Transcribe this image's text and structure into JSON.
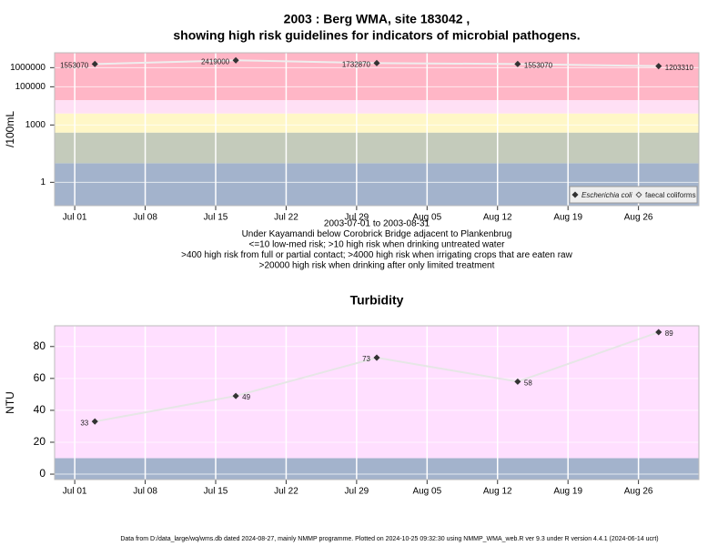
{
  "footer": "Data from D:/data_large/wq/wms.db dated 2024-08-27, mainly NMMP programme. Plotted on 2024-10-25 09:32:30 using NMMP_WMA_web.R ver 9.3 under R version 4.4.1 (2024-06-14 ucrt)",
  "chart_data": [
    {
      "type": "scatter",
      "title": [
        "2003 : Berg WMA, site 183042 ,",
        "showing high risk guidelines for indicators of microbial pathogens."
      ],
      "notes": [
        "2003-07-01 to 2003-08-31",
        "Under Kayamandi below Corobrick Bridge adjacent to Plankenbrug",
        "<=10 low-med risk; >10 high risk when drinking untreated water",
        ">400 high risk from full or partial contact; >4000 high risk when irrigating crops that are eaten raw",
        ">20000 high risk when drinking after only limited treatment"
      ],
      "y_label": "/100mL",
      "log_y": true,
      "x": [
        "2003-07-03",
        "2003-07-17",
        "2003-07-31",
        "2003-08-14",
        "2003-08-28"
      ],
      "series": [
        {
          "name": "Escherichia coli",
          "color": "#333333",
          "values": [
            1553070,
            2419000,
            1732870,
            1553070,
            1203310
          ]
        },
        {
          "name": "faecal coliforms",
          "color": "#555555",
          "values": [
            null,
            null,
            null,
            null,
            null
          ]
        }
      ],
      "line_color": "#eeeeee",
      "xlim": [
        "2003-06-29",
        "2003-09-01"
      ],
      "xticks": [
        {
          "value": "2003-07-01",
          "label": "Jul 01"
        },
        {
          "value": "2003-07-08",
          "label": "Jul 08"
        },
        {
          "value": "2003-07-15",
          "label": "Jul 15"
        },
        {
          "value": "2003-07-22",
          "label": "Jul 22"
        },
        {
          "value": "2003-07-29",
          "label": "Jul 29"
        },
        {
          "value": "2003-08-05",
          "label": "Aug 05"
        },
        {
          "value": "2003-08-12",
          "label": "Aug 12"
        },
        {
          "value": "2003-08-19",
          "label": "Aug 19"
        },
        {
          "value": "2003-08-26",
          "label": "Aug 26"
        }
      ],
      "ylim": [
        0.06,
        6000000
      ],
      "yticks": [
        1,
        1000,
        100000,
        1000000
      ],
      "band_breaks": [
        10,
        400,
        4000,
        20000
      ],
      "band_colors": [
        "#a3b3cc",
        "#c4cbbb",
        "#fff7c7",
        "#ffe0f5",
        "#ffb6c6"
      ],
      "grid": true,
      "legend_position": "bottom right"
    },
    {
      "type": "line",
      "title": "Turbidity",
      "y_label": "NTU",
      "x": [
        "2003-07-03",
        "2003-07-17",
        "2003-07-31",
        "2003-08-14",
        "2003-08-28"
      ],
      "values": [
        33,
        49,
        73,
        58,
        89
      ],
      "color": "#333333",
      "line_color": "#e6e6e6",
      "xlim": [
        "2003-06-29",
        "2003-09-01"
      ],
      "xticks": [
        {
          "value": "2003-07-01",
          "label": "Jul 01"
        },
        {
          "value": "2003-07-08",
          "label": "Jul 08"
        },
        {
          "value": "2003-07-15",
          "label": "Jul 15"
        },
        {
          "value": "2003-07-22",
          "label": "Jul 22"
        },
        {
          "value": "2003-07-29",
          "label": "Jul 29"
        },
        {
          "value": "2003-08-05",
          "label": "Aug 05"
        },
        {
          "value": "2003-08-12",
          "label": "Aug 12"
        },
        {
          "value": "2003-08-19",
          "label": "Aug 19"
        },
        {
          "value": "2003-08-26",
          "label": "Aug 26"
        }
      ],
      "ylim": [
        -3.4,
        93
      ],
      "yticks": [
        0,
        20,
        40,
        60,
        80
      ],
      "band_breaks": [
        10
      ],
      "band_colors": [
        "#a3b3cc",
        "#ffdfff"
      ],
      "grid": true
    }
  ]
}
